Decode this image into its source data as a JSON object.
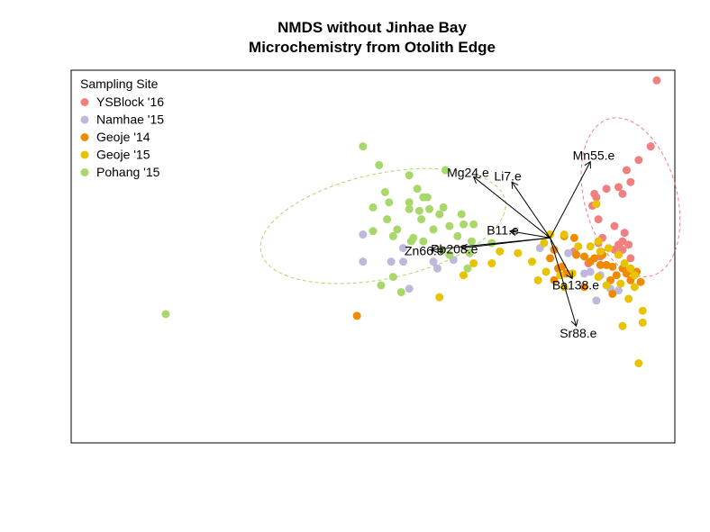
{
  "chart_data": {
    "type": "scatter",
    "title_line1": "NMDS without Jinhae Bay",
    "title_line2": "Microchemistry from Otolith Edge",
    "xlim": [
      -1.8,
      1.2
    ],
    "ylim": [
      -1.2,
      1.0
    ],
    "legend": {
      "title": "Sampling Site",
      "position": "top-left",
      "entries": [
        {
          "name": "YSBlock '16",
          "color": "#F08080"
        },
        {
          "name": "Namhae '15",
          "color": "#BDB8DC"
        },
        {
          "name": "Geoje '14",
          "color": "#F08A00"
        },
        {
          "name": "Geoje '15",
          "color": "#E8C400"
        },
        {
          "name": "Pohang '15",
          "color": "#A8D86A"
        }
      ]
    },
    "series": [
      {
        "name": "YSBlock '16",
        "color": "#F08080",
        "ellipse": {
          "cx": 0.98,
          "cy": 0.25,
          "rx": 0.23,
          "ry": 0.48,
          "angle": -15
        },
        "points": [
          [
            1.11,
            0.94
          ],
          [
            1.08,
            0.55
          ],
          [
            1.02,
            0.47
          ],
          [
            0.96,
            0.41
          ],
          [
            0.98,
            0.34
          ],
          [
            0.92,
            0.31
          ],
          [
            0.94,
            0.27
          ],
          [
            0.86,
            0.3
          ],
          [
            0.8,
            0.27
          ],
          [
            0.81,
            0.25
          ],
          [
            0.79,
            0.2
          ],
          [
            0.82,
            0.12
          ],
          [
            0.9,
            0.08
          ],
          [
            0.84,
            0.01
          ],
          [
            0.82,
            -0.02
          ],
          [
            0.94,
            -0.01
          ],
          [
            0.92,
            -0.03
          ],
          [
            0.94,
            -0.06
          ],
          [
            0.97,
            -0.03
          ],
          [
            0.95,
            0.04
          ],
          [
            0.9,
            -0.06
          ],
          [
            0.83,
            -0.1
          ],
          [
            0.98,
            -0.11
          ],
          [
            1.0,
            -0.2
          ],
          [
            0.77,
            -0.14
          ],
          [
            0.7,
            -0.07
          ]
        ]
      },
      {
        "name": "Namhae '15",
        "color": "#BDB8DC",
        "points": [
          [
            -0.35,
            0.03
          ],
          [
            -0.35,
            -0.13
          ],
          [
            -0.21,
            -0.13
          ],
          [
            -0.15,
            -0.13
          ],
          [
            -0.15,
            -0.05
          ],
          [
            0.0,
            -0.13
          ],
          [
            0.02,
            -0.17
          ],
          [
            0.1,
            -0.12
          ],
          [
            0.53,
            -0.05
          ],
          [
            0.67,
            -0.08
          ],
          [
            0.75,
            -0.2
          ],
          [
            0.78,
            -0.19
          ],
          [
            0.83,
            -0.21
          ],
          [
            0.88,
            -0.29
          ],
          [
            0.81,
            -0.36
          ],
          [
            0.92,
            -0.3
          ],
          [
            -0.12,
            -0.29
          ]
        ]
      },
      {
        "name": "Geoje '14",
        "color": "#F08A00",
        "points": [
          [
            0.71,
            -0.09
          ],
          [
            0.75,
            -0.1
          ],
          [
            0.78,
            -0.13
          ],
          [
            0.8,
            -0.11
          ],
          [
            0.83,
            -0.15
          ],
          [
            0.86,
            -0.15
          ],
          [
            0.89,
            -0.16
          ],
          [
            0.91,
            -0.21
          ],
          [
            0.94,
            -0.17
          ],
          [
            0.96,
            -0.2
          ],
          [
            0.98,
            -0.24
          ],
          [
            1.01,
            -0.19
          ],
          [
            1.03,
            -0.25
          ],
          [
            0.88,
            -0.24
          ],
          [
            0.6,
            -0.06
          ],
          [
            0.62,
            -0.17
          ],
          [
            0.66,
            -0.2
          ],
          [
            0.58,
            -0.11
          ],
          [
            0.64,
            -0.16
          ],
          [
            0.69,
            -0.2
          ],
          [
            0.84,
            -0.09
          ],
          [
            0.89,
            -0.32
          ],
          [
            0.75,
            -0.28
          ],
          [
            0.6,
            -0.24
          ],
          [
            0.7,
            0.01
          ],
          [
            0.65,
            0.02
          ],
          [
            -0.38,
            -0.45
          ]
        ]
      },
      {
        "name": "Geoje '15",
        "color": "#E8C400",
        "points": [
          [
            0.81,
            0.21
          ],
          [
            0.82,
            -0.01
          ],
          [
            0.65,
            0.03
          ],
          [
            0.58,
            0.03
          ],
          [
            0.55,
            -0.02
          ],
          [
            0.72,
            -0.04
          ],
          [
            0.78,
            -0.04
          ],
          [
            0.83,
            -0.07
          ],
          [
            0.87,
            -0.05
          ],
          [
            0.92,
            -0.09
          ],
          [
            0.95,
            -0.14
          ],
          [
            0.98,
            -0.17
          ],
          [
            1.0,
            -0.21
          ],
          [
            0.93,
            -0.26
          ],
          [
            0.86,
            -0.27
          ],
          [
            0.82,
            -0.22
          ],
          [
            0.69,
            -0.2
          ],
          [
            0.63,
            -0.21
          ],
          [
            0.56,
            -0.19
          ],
          [
            0.52,
            -0.24
          ],
          [
            0.49,
            -0.13
          ],
          [
            0.42,
            -0.08
          ],
          [
            0.33,
            -0.07
          ],
          [
            0.29,
            -0.14
          ],
          [
            0.2,
            -0.14
          ],
          [
            0.15,
            -0.21
          ],
          [
            0.65,
            -0.28
          ],
          [
            1.0,
            -0.28
          ],
          [
            0.97,
            -0.35
          ],
          [
            1.04,
            -0.42
          ],
          [
            1.04,
            -0.49
          ],
          [
            0.94,
            -0.51
          ],
          [
            0.03,
            -0.34
          ],
          [
            1.02,
            -0.73
          ]
        ]
      },
      {
        "name": "Pohang '15",
        "color": "#A8D86A",
        "ellipse": {
          "cx": -0.25,
          "cy": 0.08,
          "rx": 0.62,
          "ry": 0.31,
          "angle": -12
        },
        "points": [
          [
            -0.35,
            0.55
          ],
          [
            -0.27,
            0.44
          ],
          [
            -0.12,
            0.38
          ],
          [
            0.06,
            0.41
          ],
          [
            -0.24,
            0.28
          ],
          [
            -0.22,
            0.22
          ],
          [
            -0.08,
            0.3
          ],
          [
            -0.05,
            0.25
          ],
          [
            -0.03,
            0.25
          ],
          [
            -0.3,
            0.19
          ],
          [
            -0.23,
            0.12
          ],
          [
            -0.12,
            0.18
          ],
          [
            -0.07,
            0.17
          ],
          [
            -0.02,
            0.18
          ],
          [
            0.03,
            0.15
          ],
          [
            0.08,
            0.08
          ],
          [
            0.05,
            0.19
          ],
          [
            0.14,
            0.15
          ],
          [
            0.15,
            0.09
          ],
          [
            0.2,
            0.09
          ],
          [
            0.19,
            -0.01
          ],
          [
            0.04,
            -0.06
          ],
          [
            -0.1,
            0.01
          ],
          [
            -0.05,
            -0.01
          ],
          [
            -0.18,
            0.06
          ],
          [
            -0.2,
            0.02
          ],
          [
            -0.3,
            0.05
          ],
          [
            -0.11,
            -0.01
          ],
          [
            0.0,
            0.06
          ],
          [
            0.12,
            0.02
          ],
          [
            -0.12,
            0.22
          ],
          [
            -0.06,
            0.12
          ],
          [
            0.08,
            -0.09
          ],
          [
            0.18,
            -0.08
          ],
          [
            -0.26,
            -0.27
          ],
          [
            -0.16,
            -0.31
          ],
          [
            -0.2,
            -0.22
          ],
          [
            0.17,
            -0.17
          ],
          [
            0.29,
            -0.02
          ],
          [
            -1.33,
            -0.44
          ]
        ]
      }
    ],
    "vectors": [
      {
        "label": "Mn55.e",
        "dx": 0.2,
        "dy": 0.45
      },
      {
        "label": "Mg24.e",
        "dx": -0.38,
        "dy": 0.36
      },
      {
        "label": "Li7.e",
        "dx": -0.19,
        "dy": 0.33
      },
      {
        "label": "B11.e",
        "dx": -0.2,
        "dy": 0.04
      },
      {
        "label": "Zn66.e",
        "dx": -0.59,
        "dy": -0.07
      },
      {
        "label": "Pb208.e",
        "dx": -0.44,
        "dy": -0.06
      },
      {
        "label": "Ba138.e",
        "dx": 0.11,
        "dy": -0.24
      },
      {
        "label": "Sr88.e",
        "dx": 0.13,
        "dy": -0.52
      }
    ],
    "vector_origin": [
      0.58,
      0.01
    ]
  }
}
